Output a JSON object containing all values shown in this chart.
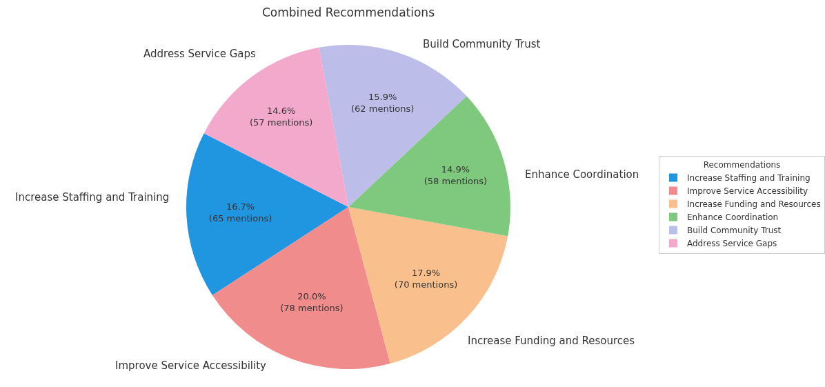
{
  "chart_data": {
    "type": "pie",
    "title": "Combined Recommendations",
    "legend_title": "Recommendations",
    "legend": "right",
    "categories": [
      "Increase Staffing and Training",
      "Improve Service Accessibility",
      "Increase Funding and Resources",
      "Enhance Coordination",
      "Build Community Trust",
      "Address Service Gaps"
    ],
    "values": [
      65,
      78,
      70,
      58,
      62,
      57
    ],
    "colors": [
      "#2196e0",
      "#f08c8c",
      "#f9c08e",
      "#7fc97f",
      "#bcbde8",
      "#f3a9cb"
    ],
    "value_labels": [
      "16.7%\n(65 mentions)",
      "20.0%\n(78 mentions)",
      "17.9%\n(70 mentions)",
      "14.9%\n(58 mentions)",
      "15.9%\n(62 mentions)",
      "14.6%\n(57 mentions)"
    ]
  }
}
